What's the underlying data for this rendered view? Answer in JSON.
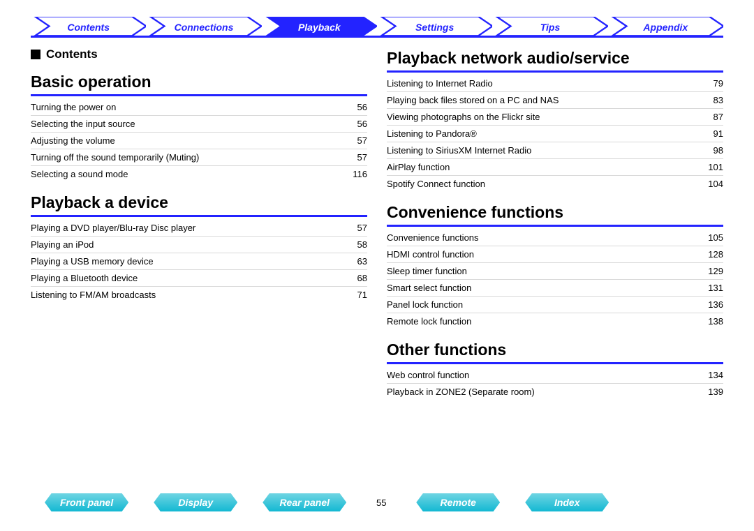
{
  "topnav": {
    "items": [
      {
        "label": "Contents",
        "active": false
      },
      {
        "label": "Connections",
        "active": false
      },
      {
        "label": "Playback",
        "active": true
      },
      {
        "label": "Settings",
        "active": false
      },
      {
        "label": "Tips",
        "active": false
      },
      {
        "label": "Appendix",
        "active": false
      }
    ],
    "active_bg": "#2323ff",
    "active_fg": "#ffffff",
    "inactive_stroke": "#2323ff",
    "inactive_fg": "#2323ff"
  },
  "contents_label": "Contents",
  "left_sections": [
    {
      "title": "Basic operation",
      "rows": [
        {
          "label": "Turning the power on",
          "page": "56"
        },
        {
          "label": "Selecting the input source",
          "page": "56"
        },
        {
          "label": "Adjusting the volume",
          "page": "57"
        },
        {
          "label": "Turning off the sound temporarily (Muting)",
          "page": "57"
        },
        {
          "label": "Selecting a sound mode",
          "page": "116"
        }
      ]
    },
    {
      "title": "Playback a device",
      "rows": [
        {
          "label": "Playing a DVD player/Blu-ray Disc player",
          "page": "57"
        },
        {
          "label": "Playing an iPod",
          "page": "58"
        },
        {
          "label": "Playing a USB memory device",
          "page": "63"
        },
        {
          "label": "Playing a Bluetooth device",
          "page": "68"
        },
        {
          "label": "Listening to FM/AM broadcasts",
          "page": "71"
        }
      ]
    }
  ],
  "right_sections": [
    {
      "title": "Playback network audio/service",
      "rows": [
        {
          "label": "Listening to Internet Radio",
          "page": "79"
        },
        {
          "label": "Playing back files stored on a PC and NAS",
          "page": "83"
        },
        {
          "label": "Viewing photographs on the Flickr site",
          "page": "87"
        },
        {
          "label": "Listening to Pandora®",
          "page": "91"
        },
        {
          "label": "Listening to SiriusXM Internet Radio",
          "page": "98"
        },
        {
          "label": "AirPlay function",
          "page": "101"
        },
        {
          "label": "Spotify Connect function",
          "page": "104"
        }
      ]
    },
    {
      "title": "Convenience functions",
      "rows": [
        {
          "label": "Convenience functions",
          "page": "105"
        },
        {
          "label": "HDMI control function",
          "page": "128"
        },
        {
          "label": "Sleep timer function",
          "page": "129"
        },
        {
          "label": "Smart select function",
          "page": "131"
        },
        {
          "label": "Panel lock function",
          "page": "136"
        },
        {
          "label": "Remote lock function",
          "page": "138"
        }
      ]
    },
    {
      "title": "Other functions",
      "rows": [
        {
          "label": "Web control function",
          "page": "134"
        },
        {
          "label": "Playback in ZONE2 (Separate room)",
          "page": "139"
        }
      ]
    }
  ],
  "bottomnav": {
    "items": [
      {
        "label": "Front panel"
      },
      {
        "label": "Display"
      },
      {
        "label": "Rear panel"
      }
    ],
    "page_number": "55",
    "items_after": [
      {
        "label": "Remote"
      },
      {
        "label": "Index"
      }
    ],
    "pill_gradient_from": "#6fd5e3",
    "pill_gradient_to": "#13b8d2",
    "pill_fg": "#ffffff"
  },
  "colors": {
    "rule_blue": "#2323ff",
    "row_border": "#d9d9d9",
    "text": "#000000",
    "background": "#ffffff"
  },
  "typography": {
    "topnav_fontsize": 14,
    "section_title_fontsize": 23,
    "row_fontsize": 13,
    "contents_label_fontsize": 17
  }
}
